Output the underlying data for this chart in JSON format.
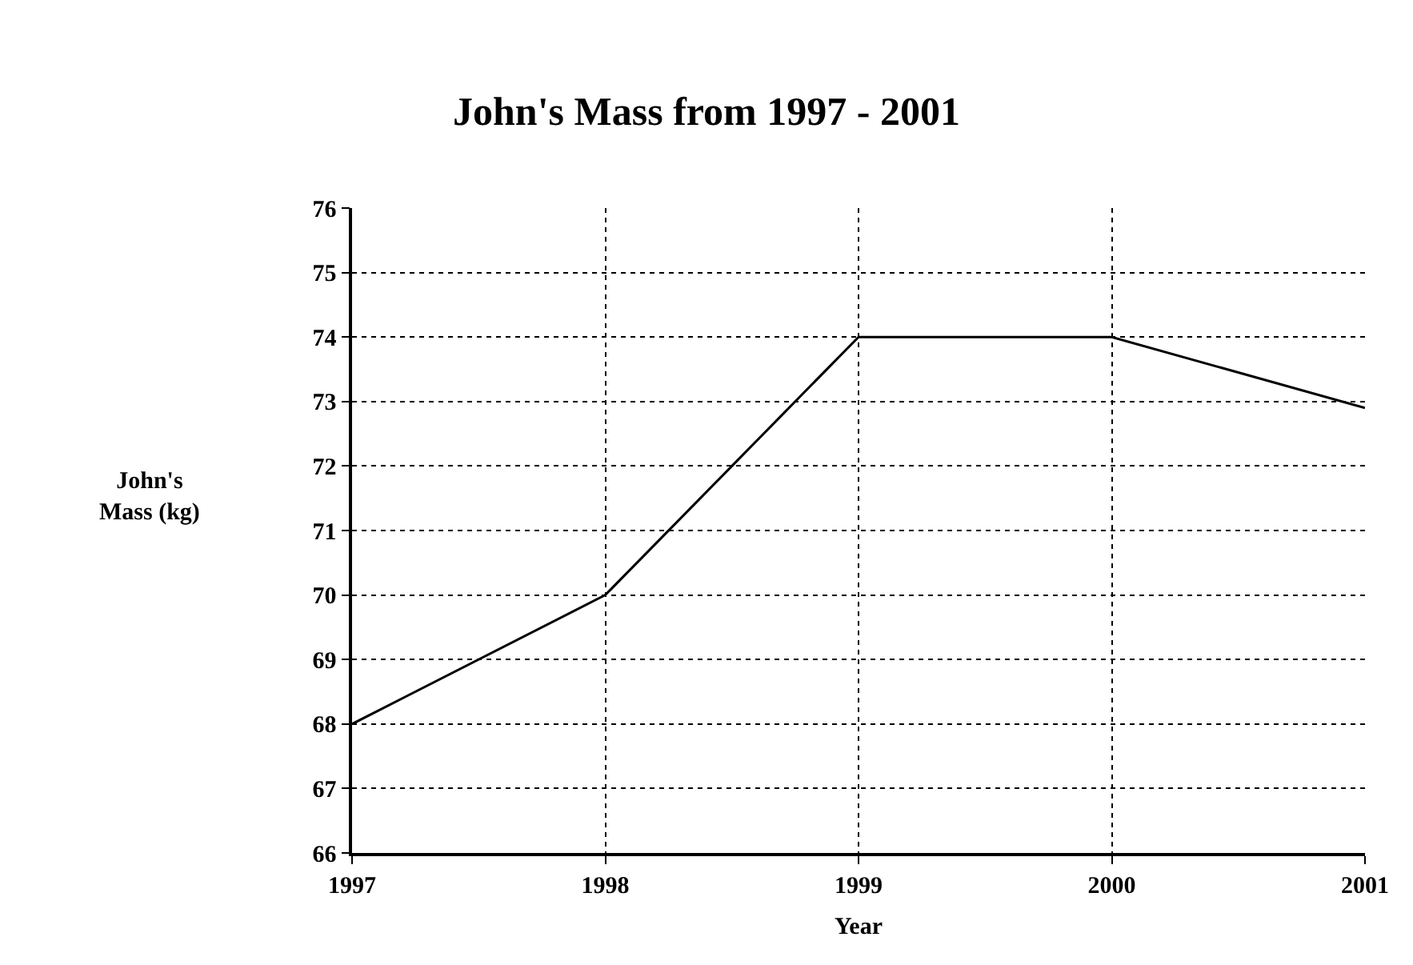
{
  "chart_data": {
    "type": "line",
    "title": "John's Mass from 1997 - 2001",
    "xlabel": "Year",
    "ylabel": "John's\nMass (kg)",
    "x": [
      1997,
      1998,
      1999,
      2000,
      2001
    ],
    "series": [
      {
        "color": "#000000",
        "values": [
          68,
          70,
          74,
          74,
          72.9
        ]
      }
    ],
    "xlim": [
      1997,
      2001
    ],
    "xticks": [
      1997,
      1998,
      1999,
      2000,
      2001
    ],
    "ylim": [
      66,
      76
    ],
    "yticks": [
      66,
      67,
      68,
      69,
      70,
      71,
      72,
      73,
      74,
      75,
      76
    ],
    "grid": true,
    "legend": false,
    "marker": "none",
    "line_style": "solid"
  }
}
